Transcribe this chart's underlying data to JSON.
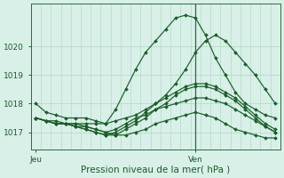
{
  "background_color": "#d8f0e8",
  "grid_color": "#b8d8cc",
  "line_color": "#1a5c28",
  "marker_color": "#1a5c28",
  "xlabel": "Pression niveau de la mer( hPa )",
  "xlabel_color": "#1a5c28",
  "tick_color": "#1a5c28",
  "spine_color": "#2a6b3a",
  "ylim": [
    1016.4,
    1021.5
  ],
  "yticks": [
    1017,
    1018,
    1019,
    1020
  ],
  "n_points": 25,
  "ven_index": 16,
  "series": [
    [
      1018.0,
      1017.7,
      1017.6,
      1017.5,
      1017.5,
      1017.5,
      1017.4,
      1017.3,
      1017.8,
      1018.5,
      1019.2,
      1019.8,
      1020.2,
      1020.6,
      1021.0,
      1021.1,
      1021.0,
      1020.4,
      1019.6,
      1019.0,
      1018.4,
      1018.0,
      1017.8,
      1017.6,
      1017.5
    ],
    [
      1017.5,
      1017.4,
      1017.4,
      1017.3,
      1017.3,
      1017.3,
      1017.3,
      1017.3,
      1017.4,
      1017.5,
      1017.6,
      1017.8,
      1018.0,
      1018.3,
      1018.7,
      1019.2,
      1019.8,
      1020.2,
      1020.4,
      1020.2,
      1019.8,
      1019.4,
      1019.0,
      1018.5,
      1018.0
    ],
    [
      1017.5,
      1017.4,
      1017.3,
      1017.3,
      1017.3,
      1017.2,
      1017.1,
      1017.0,
      1016.9,
      1016.9,
      1017.0,
      1017.1,
      1017.3,
      1017.4,
      1017.5,
      1017.6,
      1017.7,
      1017.6,
      1017.5,
      1017.3,
      1017.1,
      1017.0,
      1016.9,
      1016.8,
      1016.8
    ],
    [
      1017.5,
      1017.4,
      1017.3,
      1017.3,
      1017.2,
      1017.2,
      1017.1,
      1017.0,
      1017.1,
      1017.3,
      1017.5,
      1017.6,
      1017.8,
      1017.9,
      1018.0,
      1018.1,
      1018.2,
      1018.2,
      1018.1,
      1018.0,
      1017.8,
      1017.6,
      1017.4,
      1017.2,
      1017.0
    ],
    [
      1017.5,
      1017.4,
      1017.3,
      1017.3,
      1017.2,
      1017.1,
      1017.0,
      1016.9,
      1017.0,
      1017.2,
      1017.4,
      1017.7,
      1018.0,
      1018.2,
      1018.4,
      1018.6,
      1018.7,
      1018.7,
      1018.6,
      1018.4,
      1018.2,
      1017.9,
      1017.6,
      1017.3,
      1017.1
    ],
    [
      1017.5,
      1017.4,
      1017.3,
      1017.3,
      1017.2,
      1017.1,
      1017.0,
      1016.9,
      1016.9,
      1017.1,
      1017.3,
      1017.5,
      1017.8,
      1018.0,
      1018.3,
      1018.5,
      1018.6,
      1018.6,
      1018.5,
      1018.3,
      1018.1,
      1017.8,
      1017.5,
      1017.2,
      1017.0
    ]
  ]
}
